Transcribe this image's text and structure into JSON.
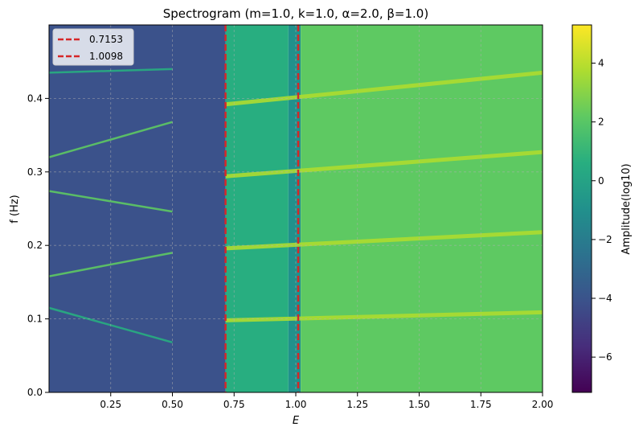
{
  "chart_data": {
    "type": "heatmap",
    "title": "Spectrogram (m=1.0, k=1.0, α=2.0, β=1.0)",
    "xlabel": "E",
    "ylabel": "f (Hz)",
    "xlim": [
      0.0,
      2.0
    ],
    "ylim": [
      0.0,
      0.5
    ],
    "xticks": [
      "0.25",
      "0.50",
      "0.75",
      "1.00",
      "1.25",
      "1.50",
      "1.75",
      "2.00"
    ],
    "yticks": [
      "0.0",
      "0.1",
      "0.2",
      "0.3",
      "0.4"
    ],
    "grid": true,
    "colormap": "viridis",
    "colorbar": {
      "label": "Amplitude(log10)",
      "range": [
        -7.2,
        5.3
      ],
      "ticks": [
        "−6",
        "−4",
        "−2",
        "0",
        "2",
        "4"
      ]
    },
    "legend": {
      "placement": "top-left",
      "entries": [
        {
          "label": "0.7153",
          "x": 0.7153,
          "color": "#d62728",
          "style": "dashed"
        },
        {
          "label": "1.0098",
          "x": 1.0098,
          "color": "#d62728",
          "style": "dashed"
        }
      ]
    },
    "regions": [
      {
        "x_range": [
          0.0,
          0.5
        ],
        "description_level": -4.5
      },
      {
        "x_range": [
          0.5,
          0.7153
        ],
        "description_level": -4.0
      },
      {
        "x_range": [
          0.7153,
          0.97
        ],
        "description_level": 1.0
      },
      {
        "x_range": [
          0.97,
          1.02
        ],
        "description_level": -1.5
      },
      {
        "x_range": [
          1.02,
          2.0
        ],
        "description_level": 2.5
      }
    ],
    "ridges": [
      {
        "x": [
          0.7153,
          2.0
        ],
        "y": [
          0.196,
          0.218
        ],
        "level": 4.5
      },
      {
        "x": [
          0.7153,
          2.0
        ],
        "y": [
          0.392,
          0.435
        ],
        "level": 3.8
      },
      {
        "x": [
          0.7153,
          2.0
        ],
        "y": [
          0.098,
          0.109
        ],
        "level": 3.5
      },
      {
        "x": [
          0.7153,
          2.0
        ],
        "y": [
          0.294,
          0.327
        ],
        "level": 3.5
      },
      {
        "x": [
          0.0,
          0.5
        ],
        "y": [
          0.158,
          0.19
        ],
        "level": 1.5
      },
      {
        "x": [
          0.0,
          0.5
        ],
        "y": [
          0.274,
          0.246
        ],
        "level": 1.5
      },
      {
        "x": [
          0.0,
          0.5
        ],
        "y": [
          0.32,
          0.368
        ],
        "level": 1.5
      },
      {
        "x": [
          0.0,
          0.5
        ],
        "y": [
          0.115,
          0.068
        ],
        "level": 1.2
      },
      {
        "x": [
          0.0,
          0.5
        ],
        "y": [
          0.435,
          0.44
        ],
        "level": 1.2
      }
    ]
  }
}
